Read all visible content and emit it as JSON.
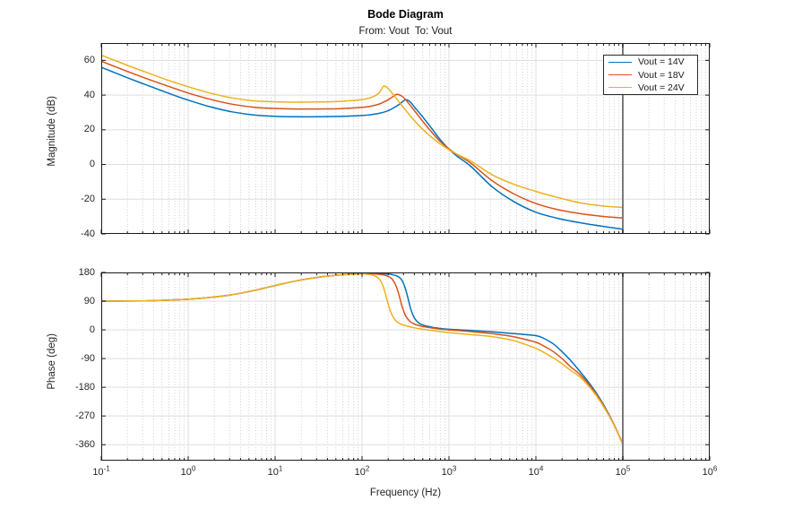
{
  "figure": {
    "title": "Bode Diagram",
    "subtitle": "From: Vout  To: Vout",
    "xlabel": "Frequency (Hz)"
  },
  "legend": {
    "position": "northeast-inside-magnitude-plot",
    "items": [
      {
        "label": "Vout = 14V",
        "color": "#0072BD"
      },
      {
        "label": "Vout = 18V",
        "color": "#D95319"
      },
      {
        "label": "Vout = 24V",
        "color": "#EDB120"
      }
    ]
  },
  "styles": {
    "background": "#ffffff",
    "axis_box": "#1a1a1a",
    "tick_mark": "#1a1a1a",
    "grid_major": "#dedede",
    "grid_minor": "#cccccc",
    "cursor_line": "#7a7a7a",
    "tick_label": "#262626"
  },
  "chart_data": [
    {
      "type": "line",
      "id": "magnitude",
      "title": "Bode Diagram",
      "subtitle": "From: Vout  To: Vout",
      "ylabel": "Magnitude (dB)",
      "xscale": "log10",
      "xlim_log10": [
        -1,
        6
      ],
      "ylim": [
        -40,
        70
      ],
      "yticks": [
        60,
        40,
        20,
        0,
        -20,
        -40
      ],
      "xtick_exponents": [
        -1,
        0,
        1,
        2,
        3,
        4,
        5,
        6
      ],
      "grid": true,
      "cursor_line_log10f": 5,
      "series": [
        {
          "name": "Vout = 14V",
          "color": "#0072BD",
          "points": [
            [
              -1,
              56
            ],
            [
              -0.75,
              51
            ],
            [
              -0.5,
              46.2
            ],
            [
              -0.25,
              41.5
            ],
            [
              0,
              37.1
            ],
            [
              0.25,
              33.3
            ],
            [
              0.5,
              30.4
            ],
            [
              0.75,
              28.6
            ],
            [
              1,
              27.8
            ],
            [
              1.25,
              27.5
            ],
            [
              1.5,
              27.5
            ],
            [
              1.75,
              27.7
            ],
            [
              2,
              28.2
            ],
            [
              2.1,
              28.7
            ],
            [
              2.2,
              29.5
            ],
            [
              2.3,
              31
            ],
            [
              2.4,
              33.7
            ],
            [
              2.45,
              35.5
            ],
            [
              2.5,
              37.3
            ],
            [
              2.55,
              36.3
            ],
            [
              2.6,
              33.3
            ],
            [
              2.7,
              27.3
            ],
            [
              2.8,
              20.9
            ],
            [
              2.9,
              14.3
            ],
            [
              3,
              8.8
            ],
            [
              3.1,
              4.5
            ],
            [
              3.25,
              -1
            ],
            [
              3.5,
              -13
            ],
            [
              3.75,
              -21.5
            ],
            [
              4,
              -27.5
            ],
            [
              4.25,
              -31
            ],
            [
              4.5,
              -33.5
            ],
            [
              4.75,
              -35.5
            ],
            [
              5,
              -37.3
            ]
          ]
        },
        {
          "name": "Vout = 18V",
          "color": "#D95319",
          "points": [
            [
              -1,
              59.5
            ],
            [
              -0.75,
              54.6
            ],
            [
              -0.5,
              49.9
            ],
            [
              -0.25,
              45.4
            ],
            [
              0,
              41.2
            ],
            [
              0.25,
              37.6
            ],
            [
              0.5,
              34.8
            ],
            [
              0.75,
              33
            ],
            [
              1,
              32.3
            ],
            [
              1.25,
              32
            ],
            [
              1.5,
              32
            ],
            [
              1.75,
              32.2
            ],
            [
              2,
              32.9
            ],
            [
              2.1,
              33.6
            ],
            [
              2.2,
              34.9
            ],
            [
              2.3,
              37.3
            ],
            [
              2.35,
              38.9
            ],
            [
              2.4,
              40.4
            ],
            [
              2.45,
              39.6
            ],
            [
              2.5,
              37.4
            ],
            [
              2.6,
              31.2
            ],
            [
              2.7,
              24.8
            ],
            [
              2.8,
              18.7
            ],
            [
              2.9,
              13.2
            ],
            [
              3,
              9
            ],
            [
              3.1,
              5.5
            ],
            [
              3.25,
              0.8
            ],
            [
              3.5,
              -9.5
            ],
            [
              3.75,
              -17
            ],
            [
              4,
              -22.5
            ],
            [
              4.25,
              -26
            ],
            [
              4.5,
              -28.2
            ],
            [
              4.75,
              -29.8
            ],
            [
              5,
              -30.8
            ]
          ]
        },
        {
          "name": "Vout = 24V",
          "color": "#EDB120",
          "points": [
            [
              -1,
              63
            ],
            [
              -0.75,
              58.1
            ],
            [
              -0.5,
              53.4
            ],
            [
              -0.25,
              48.9
            ],
            [
              0,
              44.8
            ],
            [
              0.25,
              41.2
            ],
            [
              0.5,
              38.4
            ],
            [
              0.75,
              36.7
            ],
            [
              1,
              36.1
            ],
            [
              1.25,
              35.9
            ],
            [
              1.5,
              36
            ],
            [
              1.75,
              36.4
            ],
            [
              2,
              37.4
            ],
            [
              2.1,
              38.6
            ],
            [
              2.15,
              39.6
            ],
            [
              2.2,
              41.5
            ],
            [
              2.25,
              45.2
            ],
            [
              2.3,
              43.8
            ],
            [
              2.35,
              40.9
            ],
            [
              2.4,
              37.8
            ],
            [
              2.5,
              31.4
            ],
            [
              2.6,
              25.4
            ],
            [
              2.7,
              20.2
            ],
            [
              2.8,
              15.7
            ],
            [
              2.9,
              11.8
            ],
            [
              3,
              8.5
            ],
            [
              3.1,
              5.7
            ],
            [
              3.25,
              2
            ],
            [
              3.5,
              -6
            ],
            [
              3.75,
              -11.5
            ],
            [
              4,
              -15.5
            ],
            [
              4.25,
              -19
            ],
            [
              4.5,
              -22
            ],
            [
              4.75,
              -23.8
            ],
            [
              5,
              -24.7
            ]
          ]
        }
      ]
    },
    {
      "type": "line",
      "id": "phase",
      "ylabel": "Phase (deg)",
      "xlabel": "Frequency (Hz)",
      "xscale": "log10",
      "xlim_log10": [
        -1,
        6
      ],
      "ylim": [
        -410,
        180
      ],
      "yticks": [
        180,
        90,
        0,
        -90,
        -180,
        -270,
        -360
      ],
      "xtick_exponents": [
        -1,
        0,
        1,
        2,
        3,
        4,
        5,
        6
      ],
      "grid": true,
      "cursor_line_log10f": 5,
      "series": [
        {
          "name": "Vout = 14V",
          "color": "#0072BD",
          "points": [
            [
              -1,
              90
            ],
            [
              -0.75,
              90.3
            ],
            [
              -0.5,
              91
            ],
            [
              -0.25,
              92.8
            ],
            [
              0,
              96
            ],
            [
              0.25,
              101.5
            ],
            [
              0.5,
              110
            ],
            [
              0.75,
              123
            ],
            [
              1,
              139
            ],
            [
              1.25,
              154
            ],
            [
              1.5,
              165.5
            ],
            [
              1.75,
              172.5
            ],
            [
              2,
              176
            ],
            [
              2.1,
              176.8
            ],
            [
              2.2,
              176.5
            ],
            [
              2.3,
              175
            ],
            [
              2.35,
              173
            ],
            [
              2.4,
              169
            ],
            [
              2.44,
              162
            ],
            [
              2.47,
              150
            ],
            [
              2.5,
              128
            ],
            [
              2.53,
              98
            ],
            [
              2.56,
              66
            ],
            [
              2.6,
              38
            ],
            [
              2.65,
              22
            ],
            [
              2.7,
              15
            ],
            [
              2.8,
              8.5
            ],
            [
              2.9,
              4.5
            ],
            [
              3,
              2
            ],
            [
              3.25,
              -2
            ],
            [
              3.5,
              -6
            ],
            [
              3.75,
              -12
            ],
            [
              4,
              -18
            ],
            [
              4.1,
              -28
            ],
            [
              4.2,
              -44
            ],
            [
              4.3,
              -68
            ],
            [
              4.4,
              -96
            ],
            [
              4.5,
              -128
            ],
            [
              4.6,
              -162
            ],
            [
              4.7,
              -200
            ],
            [
              4.8,
              -245
            ],
            [
              4.9,
              -297
            ],
            [
              5,
              -358
            ]
          ]
        },
        {
          "name": "Vout = 18V",
          "color": "#D95319",
          "points": [
            [
              -1,
              90
            ],
            [
              -0.75,
              90.3
            ],
            [
              -0.5,
              91
            ],
            [
              -0.25,
              92.8
            ],
            [
              0,
              96
            ],
            [
              0.25,
              101.5
            ],
            [
              0.5,
              110
            ],
            [
              0.75,
              123
            ],
            [
              1,
              139
            ],
            [
              1.25,
              154
            ],
            [
              1.5,
              165.5
            ],
            [
              1.75,
              172.5
            ],
            [
              2,
              175.8
            ],
            [
              2.1,
              175.8
            ],
            [
              2.2,
              174
            ],
            [
              2.25,
              172
            ],
            [
              2.3,
              168
            ],
            [
              2.34,
              161
            ],
            [
              2.37,
              150
            ],
            [
              2.4,
              132
            ],
            [
              2.43,
              105
            ],
            [
              2.46,
              74
            ],
            [
              2.5,
              45
            ],
            [
              2.55,
              27
            ],
            [
              2.6,
              18.5
            ],
            [
              2.7,
              10.5
            ],
            [
              2.8,
              6
            ],
            [
              2.9,
              2.5
            ],
            [
              3,
              0
            ],
            [
              3.25,
              -5.5
            ],
            [
              3.5,
              -12
            ],
            [
              3.75,
              -22
            ],
            [
              4,
              -39
            ],
            [
              4.1,
              -52
            ],
            [
              4.2,
              -68
            ],
            [
              4.3,
              -90
            ],
            [
              4.4,
              -116
            ],
            [
              4.5,
              -138
            ],
            [
              4.6,
              -168
            ],
            [
              4.7,
              -204
            ],
            [
              4.8,
              -248
            ],
            [
              4.9,
              -298
            ],
            [
              5,
              -358
            ]
          ]
        },
        {
          "name": "Vout = 24V",
          "color": "#EDB120",
          "points": [
            [
              -1,
              90
            ],
            [
              -0.75,
              90.3
            ],
            [
              -0.5,
              91
            ],
            [
              -0.25,
              92.8
            ],
            [
              0,
              96
            ],
            [
              0.25,
              101.5
            ],
            [
              0.5,
              110
            ],
            [
              0.75,
              123
            ],
            [
              1,
              139
            ],
            [
              1.25,
              154
            ],
            [
              1.5,
              165.5
            ],
            [
              1.75,
              172.5
            ],
            [
              2,
              175
            ],
            [
              2.05,
              174.3
            ],
            [
              2.1,
              172.5
            ],
            [
              2.15,
              169
            ],
            [
              2.18,
              164
            ],
            [
              2.21,
              155
            ],
            [
              2.24,
              138
            ],
            [
              2.27,
              112
            ],
            [
              2.3,
              82
            ],
            [
              2.33,
              56
            ],
            [
              2.37,
              35
            ],
            [
              2.4,
              26
            ],
            [
              2.45,
              17.5
            ],
            [
              2.5,
              13
            ],
            [
              2.6,
              6.5
            ],
            [
              2.7,
              2
            ],
            [
              2.8,
              -2
            ],
            [
              2.9,
              -5.5
            ],
            [
              3,
              -8.5
            ],
            [
              3.25,
              -15
            ],
            [
              3.5,
              -21.5
            ],
            [
              3.75,
              -34
            ],
            [
              4,
              -58
            ],
            [
              4.1,
              -72
            ],
            [
              4.2,
              -88
            ],
            [
              4.3,
              -106
            ],
            [
              4.4,
              -127
            ],
            [
              4.5,
              -146
            ],
            [
              4.6,
              -174
            ],
            [
              4.7,
              -208
            ],
            [
              4.8,
              -250
            ],
            [
              4.9,
              -299
            ],
            [
              5,
              -359
            ]
          ]
        }
      ]
    }
  ]
}
